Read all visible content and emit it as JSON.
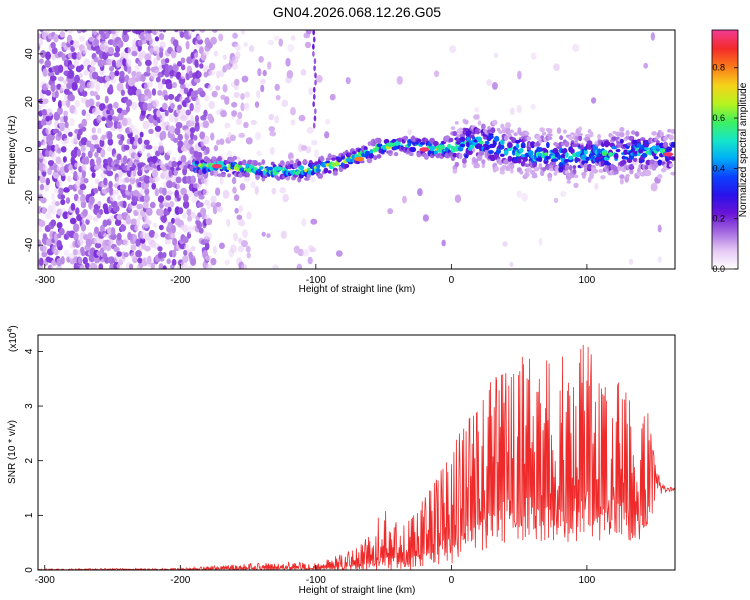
{
  "title": "GN04.2026.068.12.26.G05",
  "chart_data": [
    {
      "type": "heatmap",
      "title": "GN04.2026.068.12.26.G05",
      "xlabel": "Height of straight line (km)",
      "ylabel": "Frequency (Hz)",
      "xlim": [
        -305,
        165
      ],
      "ylim": [
        -50,
        50
      ],
      "xticks": [
        -300,
        -200,
        -100,
        0,
        100
      ],
      "yticks": [
        -40,
        -20,
        0,
        20,
        40
      ],
      "colorbar": {
        "label": "Normalized spectral amplitude",
        "range": [
          0,
          0.95
        ],
        "ticks": [
          0.0,
          0.2,
          0.4,
          0.6,
          0.8
        ],
        "colormap": [
          "#ffffff",
          "#e6c8f4",
          "#a46be0",
          "#6a14d6",
          "#2a12ea",
          "#0a40ff",
          "#00aef8",
          "#16e6c8",
          "#3ef060",
          "#b8f21e",
          "#f6d21a",
          "#fb7a1a",
          "#f42a2a",
          "#f23c96"
        ]
      },
      "ridge": {
        "x": [
          -190,
          -170,
          -150,
          -130,
          -115,
          -100,
          -85,
          -70,
          -60,
          -50,
          -40,
          -30,
          -20,
          -10,
          0,
          10,
          20,
          30,
          40,
          50,
          60,
          70,
          80,
          90,
          100,
          110,
          120,
          130,
          140,
          150,
          160
        ],
        "y": [
          -7,
          -7,
          -8,
          -9,
          -9,
          -8,
          -6,
          -3,
          -1,
          1,
          2,
          2,
          1,
          0,
          1,
          2,
          3,
          2,
          0,
          -1,
          -2,
          -2,
          -3,
          -3,
          -2,
          -2,
          -2,
          -2,
          -1,
          -1,
          -1
        ]
      }
    },
    {
      "type": "line",
      "xlabel": "Height of straight line (km)",
      "ylabel": "SNR (10 * v/v)",
      "y_multiplier": "(x10",
      "y_multiplier_exp": "4",
      "y_multiplier_close": ")",
      "xlim": [
        -305,
        165
      ],
      "ylim": [
        0,
        4.3
      ],
      "xticks": [
        -300,
        -200,
        -100,
        0,
        100
      ],
      "yticks": [
        0,
        1,
        2,
        3,
        4
      ],
      "color": "#ee2a2a",
      "envelope": {
        "x": [
          -305,
          -200,
          -160,
          -120,
          -100,
          -80,
          -70,
          -60,
          -50,
          -40,
          -30,
          -20,
          -10,
          0,
          10,
          20,
          30,
          40,
          50,
          60,
          70,
          80,
          90,
          100,
          110,
          120,
          130,
          140,
          145,
          150,
          155,
          165
        ],
        "max": [
          0.02,
          0.03,
          0.1,
          0.15,
          0.12,
          0.3,
          0.4,
          0.65,
          1.15,
          0.85,
          1.0,
          1.3,
          1.7,
          2.2,
          2.7,
          2.9,
          3.5,
          3.6,
          3.9,
          3.9,
          4.1,
          4.0,
          3.9,
          4.2,
          3.4,
          3.6,
          3.2,
          2.8,
          2.9,
          2.0,
          1.6,
          1.5
        ],
        "min": [
          0.0,
          0.0,
          0.0,
          0.0,
          0.0,
          0.0,
          0.0,
          0.0,
          0.0,
          0.0,
          0.0,
          0.0,
          0.1,
          0.1,
          0.2,
          0.25,
          0.4,
          0.5,
          0.5,
          0.5,
          0.5,
          0.4,
          0.5,
          0.6,
          0.5,
          0.6,
          0.5,
          0.4,
          0.8,
          1.1,
          1.3,
          1.45
        ]
      }
    }
  ]
}
